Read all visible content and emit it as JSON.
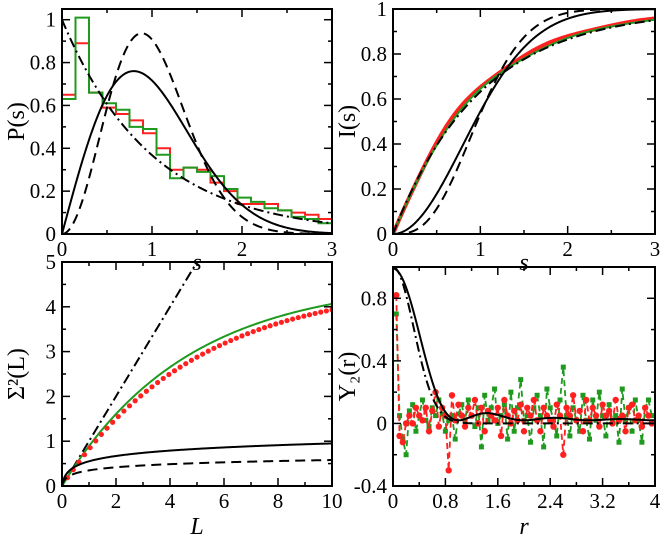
{
  "colors": {
    "red": "#ff2020",
    "green": "#1f9a1f",
    "black": "#000000"
  },
  "chart_data": [
    {
      "id": "P",
      "type": "line",
      "xlabel": "s",
      "ylabel": "P(s)",
      "xlim": [
        0,
        3
      ],
      "ylim": [
        0,
        1.05
      ],
      "xticks": [
        "0",
        "1",
        "2",
        "3"
      ],
      "yticks": [
        "0",
        "0.2",
        "0.4",
        "0.6",
        "0.8",
        "1"
      ],
      "hist": [
        {
          "name": "red-hist",
          "color": "red",
          "edges": [
            0,
            0.15,
            0.3,
            0.45,
            0.6,
            0.75,
            0.9,
            1.05,
            1.2,
            1.35,
            1.5,
            1.65,
            1.8,
            1.95,
            2.1,
            2.25,
            2.4,
            2.55,
            2.7,
            2.85,
            3.0
          ],
          "values": [
            0.65,
            0.89,
            0.66,
            0.59,
            0.56,
            0.53,
            0.47,
            0.4,
            0.3,
            0.31,
            0.3,
            0.24,
            0.2,
            0.14,
            0.14,
            0.14,
            0.11,
            0.1,
            0.09,
            0.07
          ]
        },
        {
          "name": "green-hist",
          "color": "green",
          "edges": [
            0,
            0.15,
            0.3,
            0.45,
            0.6,
            0.75,
            0.9,
            1.05,
            1.2,
            1.35,
            1.5,
            1.65,
            1.8,
            1.95,
            2.1,
            2.25,
            2.4,
            2.55,
            2.7,
            2.85,
            3.0
          ],
          "values": [
            0.63,
            1.01,
            0.66,
            0.61,
            0.58,
            0.5,
            0.49,
            0.37,
            0.26,
            0.31,
            0.29,
            0.27,
            0.21,
            0.17,
            0.15,
            0.12,
            0.11,
            0.08,
            0.07,
            0.05
          ]
        }
      ],
      "series": [
        {
          "name": "poisson",
          "style": "dashdot",
          "fn": "poisson"
        },
        {
          "name": "goe",
          "style": "solid",
          "fn": "goe"
        },
        {
          "name": "gue",
          "style": "dashed",
          "fn": "gue"
        }
      ]
    },
    {
      "id": "I",
      "type": "line",
      "xlabel": "s",
      "ylabel": "I(s)",
      "xlim": [
        0,
        3
      ],
      "ylim": [
        0,
        1
      ],
      "xticks": [
        "0",
        "1",
        "2",
        "3"
      ],
      "yticks": [
        "0",
        "0.2",
        "0.4",
        "0.6",
        "0.8",
        "1"
      ],
      "series": [
        {
          "name": "red-cumulative",
          "style": "thick",
          "color": "red",
          "fn": "cumdata_red"
        },
        {
          "name": "green-cumulative",
          "style": "thin",
          "color": "green",
          "fn": "cumdata_green"
        },
        {
          "name": "poisson",
          "style": "dashdot",
          "fn": "I_poisson"
        },
        {
          "name": "goe",
          "style": "solid",
          "fn": "I_goe"
        },
        {
          "name": "gue",
          "style": "dashed",
          "fn": "I_gue"
        }
      ]
    },
    {
      "id": "Sigma",
      "type": "line",
      "xlabel": "L",
      "ylabel": "Σ²(L)",
      "xlim": [
        0,
        10
      ],
      "ylim": [
        0,
        5
      ],
      "xticks": [
        "0",
        "2",
        "4",
        "6",
        "8",
        "10"
      ],
      "yticks": [
        "0",
        "1",
        "2",
        "3",
        "4",
        "5"
      ],
      "series": [
        {
          "name": "poisson",
          "style": "dashdot",
          "fn": "S_poisson"
        },
        {
          "name": "green-data",
          "style": "solid",
          "color": "green",
          "fn": "S_green"
        },
        {
          "name": "red-data",
          "style": "dots",
          "color": "red",
          "fn": "S_red"
        },
        {
          "name": "goe",
          "style": "solid",
          "fn": "S_goe"
        },
        {
          "name": "gue",
          "style": "dashed",
          "fn": "S_gue"
        }
      ]
    },
    {
      "id": "Y2",
      "type": "line",
      "xlabel": "r",
      "ylabel": "Y₂(r)",
      "xlim": [
        0,
        4
      ],
      "ylim": [
        -0.4,
        1
      ],
      "xticks": [
        "0",
        "0.8",
        "1.6",
        "2.4",
        "3.2",
        "4"
      ],
      "yticks": [
        "-0.4",
        "0",
        "0.4",
        "0.8"
      ],
      "series": [
        {
          "name": "green-data",
          "style": "dashed-squares",
          "color": "green",
          "x": [
            0.05,
            0.1,
            0.15,
            0.2,
            0.25,
            0.3,
            0.35,
            0.4,
            0.45,
            0.5,
            0.55,
            0.6,
            0.65,
            0.7,
            0.75,
            0.8,
            0.85,
            0.9,
            0.95,
            1.0,
            1.05,
            1.1,
            1.15,
            1.2,
            1.25,
            1.3,
            1.35,
            1.4,
            1.45,
            1.5,
            1.55,
            1.6,
            1.65,
            1.7,
            1.75,
            1.8,
            1.85,
            1.9,
            1.95,
            2.0,
            2.05,
            2.1,
            2.15,
            2.2,
            2.25,
            2.3,
            2.35,
            2.4,
            2.45,
            2.5,
            2.55,
            2.6,
            2.65,
            2.7,
            2.75,
            2.8,
            2.85,
            2.9,
            2.95,
            3.0,
            3.05,
            3.1,
            3.15,
            3.2,
            3.25,
            3.3,
            3.35,
            3.4,
            3.45,
            3.5,
            3.55,
            3.6,
            3.65,
            3.7,
            3.75,
            3.8,
            3.85,
            3.9,
            3.95
          ],
          "values": [
            0.7,
            0.05,
            -0.1,
            -0.2,
            0.08,
            0.12,
            -0.05,
            0.05,
            0.15,
            0.02,
            -0.02,
            0.1,
            0.05,
            0.15,
            0.06,
            -0.05,
            0.02,
            0.05,
            -0.1,
            0.06,
            0.12,
            0.02,
            0.15,
            0.05,
            -0.02,
            0.1,
            -0.15,
            0.18,
            0.02,
            0.1,
            0.22,
            0.0,
            0.05,
            0.12,
            -0.1,
            0.2,
            -0.05,
            0.1,
            0.28,
            0.02,
            0.05,
            -0.12,
            0.1,
            0.18,
            0.05,
            -0.15,
            0.22,
            0.1,
            0.02,
            -0.08,
            0.15,
            0.36,
            0.05,
            -0.08,
            0.1,
            0.02,
            -0.05,
            0.18,
            0.02,
            -0.1,
            0.15,
            0.02,
            0.2,
            0.05,
            -0.08,
            0.12,
            0.02,
            0.05,
            -0.12,
            0.22,
            0.02,
            0.1,
            -0.05,
            0.15,
            0.02,
            -0.12,
            0.1,
            0.15,
            0.05
          ]
        },
        {
          "name": "red-data",
          "style": "dashed-dots",
          "color": "red",
          "x": [
            0.05,
            0.1,
            0.15,
            0.2,
            0.25,
            0.3,
            0.35,
            0.4,
            0.45,
            0.5,
            0.55,
            0.6,
            0.65,
            0.7,
            0.75,
            0.8,
            0.85,
            0.9,
            0.95,
            1.0,
            1.05,
            1.1,
            1.15,
            1.2,
            1.25,
            1.3,
            1.35,
            1.4,
            1.45,
            1.5,
            1.55,
            1.6,
            1.65,
            1.7,
            1.75,
            1.8,
            1.85,
            1.9,
            1.95,
            2.0,
            2.05,
            2.1,
            2.15,
            2.2,
            2.25,
            2.3,
            2.35,
            2.4,
            2.45,
            2.5,
            2.55,
            2.6,
            2.65,
            2.7,
            2.75,
            2.8,
            2.85,
            2.9,
            2.95,
            3.0,
            3.05,
            3.1,
            3.15,
            3.2,
            3.25,
            3.3,
            3.35,
            3.4,
            3.45,
            3.5,
            3.55,
            3.6,
            3.65,
            3.7,
            3.75,
            3.8,
            3.85,
            3.9,
            3.95
          ],
          "values": [
            0.82,
            -0.08,
            -0.12,
            0.0,
            0.05,
            0.0,
            0.1,
            0.05,
            0.02,
            0.1,
            -0.05,
            0.08,
            0.2,
            -0.02,
            0.1,
            0.05,
            -0.3,
            0.18,
            0.02,
            0.12,
            0.05,
            -0.02,
            0.1,
            0.05,
            0.15,
            0.0,
            0.1,
            -0.05,
            0.08,
            0.05,
            0.02,
            0.1,
            -0.08,
            0.15,
            0.05,
            0.0,
            0.08,
            0.02,
            0.12,
            -0.05,
            0.1,
            0.05,
            0.15,
            0.02,
            -0.05,
            0.1,
            0.05,
            0.02,
            -0.02,
            0.12,
            0.05,
            -0.2,
            0.1,
            0.05,
            0.18,
            0.02,
            0.08,
            -0.05,
            0.15,
            0.02,
            0.1,
            0.05,
            -0.02,
            0.12,
            0.05,
            0.08,
            0.0,
            0.15,
            0.02,
            0.05,
            -0.05,
            0.1,
            0.12,
            0.02,
            0.05,
            -0.02,
            0.1,
            0.05,
            0.0
          ]
        },
        {
          "name": "poisson",
          "style": "dashdot",
          "fn": "Y_poisson"
        },
        {
          "name": "goe",
          "style": "solid",
          "fn": "Y_goe"
        }
      ]
    }
  ]
}
